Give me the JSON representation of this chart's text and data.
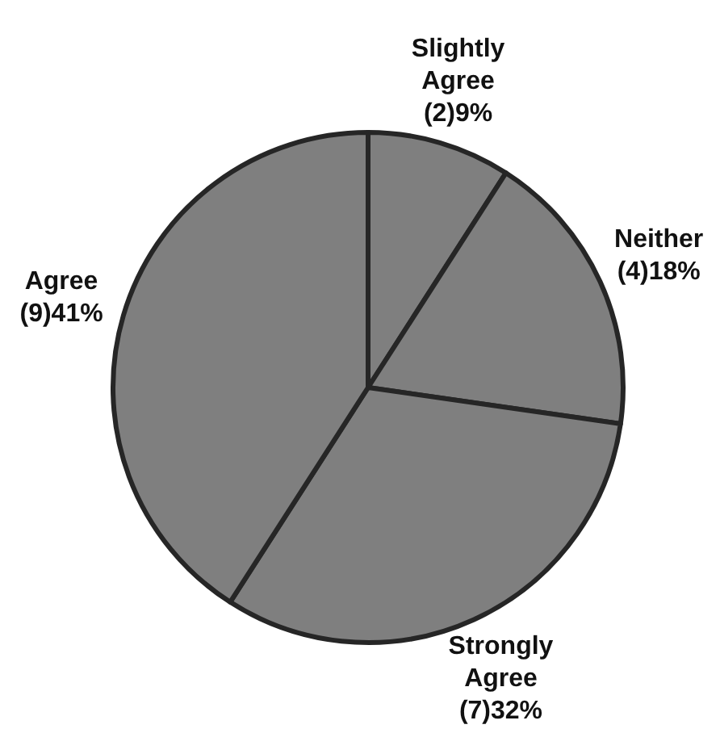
{
  "chart_data": {
    "type": "pie",
    "categories": [
      "Slightly Agree",
      "Neither",
      "Strongly Agree",
      "Agree"
    ],
    "values": [
      2,
      4,
      7,
      9
    ],
    "value_labels": [
      "(2)9%",
      "(4)18%",
      "(7)32%",
      "(9)41%"
    ],
    "colors": [
      "#7f7f7f",
      "#7f7f7f",
      "#7f7f7f",
      "#7f7f7f"
    ]
  }
}
